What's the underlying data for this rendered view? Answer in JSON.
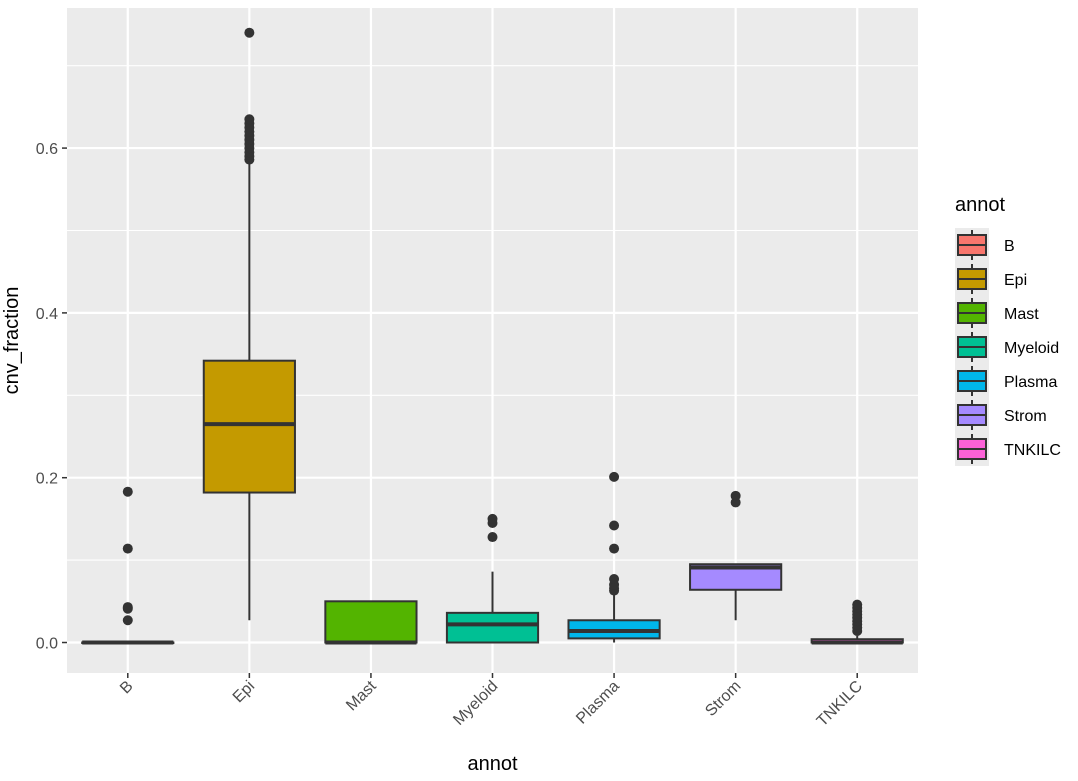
{
  "chart_data": {
    "type": "boxplot",
    "xlabel": "annot",
    "ylabel": "cnv_fraction",
    "ylim": [
      -0.037,
      0.77
    ],
    "yticks": [
      0.0,
      0.2,
      0.4,
      0.6
    ],
    "ytick_labels": [
      "0.0",
      "0.2",
      "0.4",
      "0.6"
    ],
    "categories": [
      "B",
      "Epi",
      "Mast",
      "Myeloid",
      "Plasma",
      "Strom",
      "TNKILC"
    ],
    "boxes": [
      {
        "name": "B",
        "color": "#F8766D",
        "q1": 0.0,
        "median": 0.0,
        "q3": 0.0,
        "whisker_low": 0.0,
        "whisker_high": 0.0,
        "outliers": [
          0.027,
          0.041,
          0.043,
          0.114,
          0.183
        ]
      },
      {
        "name": "Epi",
        "color": "#C49A00",
        "q1": 0.182,
        "median": 0.265,
        "q3": 0.342,
        "whisker_low": 0.027,
        "whisker_high": 0.583,
        "outliers": [
          0.586,
          0.59,
          0.595,
          0.6,
          0.605,
          0.61,
          0.615,
          0.62,
          0.625,
          0.63,
          0.635,
          0.74
        ]
      },
      {
        "name": "Mast",
        "color": "#53B400",
        "q1": 0.0,
        "median": 0.0,
        "q3": 0.05,
        "whisker_low": 0.0,
        "whisker_high": 0.05,
        "outliers": []
      },
      {
        "name": "Myeloid",
        "color": "#00C094",
        "q1": 0.0,
        "median": 0.022,
        "q3": 0.036,
        "whisker_low": 0.0,
        "whisker_high": 0.086,
        "outliers": [
          0.128,
          0.145,
          0.15
        ]
      },
      {
        "name": "Plasma",
        "color": "#00B6EB",
        "q1": 0.005,
        "median": 0.014,
        "q3": 0.027,
        "whisker_low": 0.0,
        "whisker_high": 0.06,
        "outliers": [
          0.063,
          0.066,
          0.07,
          0.077,
          0.114,
          0.142,
          0.201
        ]
      },
      {
        "name": "Strom",
        "color": "#A58AFF",
        "q1": 0.064,
        "median": 0.091,
        "q3": 0.095,
        "whisker_low": 0.027,
        "whisker_high": 0.095,
        "outliers": [
          0.17,
          0.178
        ]
      },
      {
        "name": "TNKILC",
        "color": "#FB61D7",
        "q1": 0.0,
        "median": 0.0,
        "q3": 0.004,
        "whisker_low": 0.0,
        "whisker_high": 0.008,
        "outliers": [
          0.014,
          0.018,
          0.022,
          0.026,
          0.03,
          0.034,
          0.038,
          0.042,
          0.046
        ]
      }
    ],
    "legend": {
      "title": "annot",
      "position": "right",
      "entries": [
        "B",
        "Epi",
        "Mast",
        "Myeloid",
        "Plasma",
        "Strom",
        "TNKILC"
      ]
    },
    "grid": true,
    "panel_background": "#EBEBEB",
    "grid_color": "#FFFFFF",
    "line_color": "#333333"
  }
}
